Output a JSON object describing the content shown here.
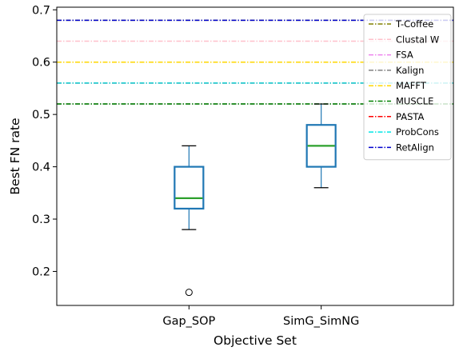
{
  "chart_data": {
    "type": "box",
    "xlabel": "Objective Set",
    "ylabel": "Best FN rate",
    "ylim": [
      0.135,
      0.705
    ],
    "yticks": [
      0.2,
      0.3,
      0.4,
      0.5,
      0.6,
      0.7
    ],
    "ytick_labels": [
      "0.2",
      "0.3",
      "0.4",
      "0.5",
      "0.6",
      "0.7"
    ],
    "grid": false,
    "legend_position": "top-right",
    "box_color": "#1f77b4",
    "median_color": "#2ca02c",
    "boxes": [
      {
        "category": "Gap_SOP",
        "whisker_low": 0.28,
        "q1": 0.32,
        "median": 0.34,
        "q3": 0.4,
        "whisker_high": 0.44,
        "outliers": [
          0.16
        ]
      },
      {
        "category": "SimG_SimNG",
        "whisker_low": 0.36,
        "q1": 0.4,
        "median": 0.44,
        "q3": 0.48,
        "whisker_high": 0.52,
        "outliers": []
      }
    ],
    "reference_lines": [
      {
        "name": "T-Coffee",
        "value": 0.68,
        "color": "#808000",
        "dash": "6,2,1.5,2"
      },
      {
        "name": "Clustal W",
        "value": 0.64,
        "color": "#ffc0cb",
        "dash": "6,2,1.5,2"
      },
      {
        "name": "FSA",
        "value": 0.56,
        "color": "#ee82ee",
        "dash": "6,2,1.5,2"
      },
      {
        "name": "Kalign",
        "value": 0.52,
        "color": "#808080",
        "dash": "6,2,1.5,2"
      },
      {
        "name": "MAFFT",
        "value": 0.6,
        "color": "#ffd700",
        "dash": "6,2,1.5,2"
      },
      {
        "name": "MUSCLE",
        "value": 0.52,
        "color": "#008000",
        "dash": "6,2,1.5,2"
      },
      {
        "name": "PASTA",
        "value": 0.56,
        "color": "#ff0000",
        "dash": "6,2,1.5,2"
      },
      {
        "name": "ProbCons",
        "value": 0.56,
        "color": "#00e5e5",
        "dash": "6,2,1.5,2"
      },
      {
        "name": "RetAlign",
        "value": 0.68,
        "color": "#0000cd",
        "dash": "6,2,1.5,2"
      }
    ]
  }
}
